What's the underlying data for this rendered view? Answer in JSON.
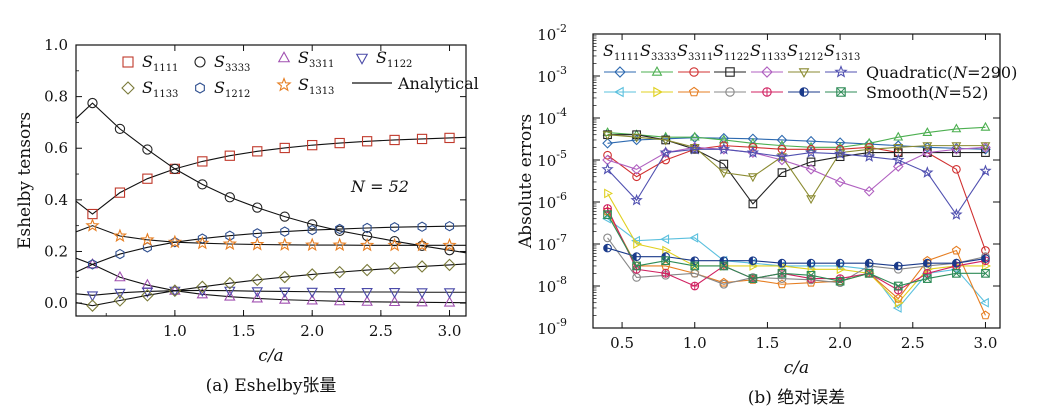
{
  "chart_data": [
    {
      "type": "line",
      "caption": "(a) Eshelby张量",
      "xlabel": "c/a",
      "ylabel": "Eshelby tensors",
      "xlim": [
        0.28,
        3.12
      ],
      "ylim": [
        -0.05,
        1.0
      ],
      "xticks": [
        "1.0",
        "1.5",
        "2.0",
        "2.5",
        "3.0"
      ],
      "yticks": [
        "0.0",
        "0.2",
        "0.4",
        "0.6",
        "0.8",
        "1.0"
      ],
      "annotation": "N = 52",
      "legend_placement": "top",
      "analytical_label": "Analytical",
      "series": [
        {
          "name": "S1111",
          "label": "S",
          "sub": "1111",
          "marker": "square",
          "color": "#c0392b",
          "x": [
            0.4,
            0.6,
            0.8,
            1.0,
            1.2,
            1.4,
            1.6,
            1.8,
            2.0,
            2.2,
            2.4,
            2.6,
            2.8,
            3.0
          ],
          "y": [
            0.345,
            0.428,
            0.482,
            0.52,
            0.549,
            0.571,
            0.588,
            0.601,
            0.612,
            0.62,
            0.627,
            0.632,
            0.636,
            0.64
          ]
        },
        {
          "name": "S3333",
          "label": "S",
          "sub": "3333",
          "marker": "circle",
          "color": "#222222",
          "x": [
            0.4,
            0.6,
            0.8,
            1.0,
            1.2,
            1.4,
            1.6,
            1.8,
            2.0,
            2.2,
            2.4,
            2.6,
            2.8,
            3.0
          ],
          "y": [
            0.775,
            0.675,
            0.595,
            0.52,
            0.46,
            0.41,
            0.37,
            0.335,
            0.305,
            0.28,
            0.26,
            0.24,
            0.222,
            0.205
          ]
        },
        {
          "name": "S3311",
          "label": "S",
          "sub": "3311",
          "marker": "triangle-up",
          "color": "#a050b0",
          "x": [
            0.4,
            0.6,
            0.8,
            1.0,
            1.2,
            1.4,
            1.6,
            1.8,
            2.0,
            2.2,
            2.4,
            2.6,
            2.8,
            3.0
          ],
          "y": [
            0.15,
            0.1,
            0.07,
            0.048,
            0.034,
            0.025,
            0.018,
            0.013,
            0.01,
            0.007,
            0.005,
            0.004,
            0.003,
            0.002
          ]
        },
        {
          "name": "S1122",
          "label": "S",
          "sub": "1122",
          "marker": "triangle-down",
          "color": "#4a4aa8",
          "x": [
            0.4,
            0.6,
            0.8,
            1.0,
            1.2,
            1.4,
            1.6,
            1.8,
            2.0,
            2.2,
            2.4,
            2.6,
            2.8,
            3.0
          ],
          "y": [
            0.03,
            0.04,
            0.045,
            0.048,
            0.049,
            0.048,
            0.046,
            0.045,
            0.044,
            0.043,
            0.043,
            0.043,
            0.042,
            0.042
          ]
        },
        {
          "name": "S1133",
          "label": "S",
          "sub": "1133",
          "marker": "diamond",
          "color": "#7a7a3a",
          "x": [
            0.4,
            0.6,
            0.8,
            1.0,
            1.2,
            1.4,
            1.6,
            1.8,
            2.0,
            2.2,
            2.4,
            2.6,
            2.8,
            3.0
          ],
          "y": [
            -0.01,
            0.01,
            0.03,
            0.048,
            0.063,
            0.077,
            0.09,
            0.101,
            0.111,
            0.12,
            0.128,
            0.135,
            0.142,
            0.148
          ]
        },
        {
          "name": "S1212",
          "label": "S",
          "sub": "1212",
          "marker": "hexagon",
          "color": "#2f4f8f",
          "x": [
            0.4,
            0.6,
            0.8,
            1.0,
            1.2,
            1.4,
            1.6,
            1.8,
            2.0,
            2.2,
            2.4,
            2.6,
            2.8,
            3.0
          ],
          "y": [
            0.15,
            0.19,
            0.216,
            0.236,
            0.25,
            0.261,
            0.27,
            0.277,
            0.283,
            0.287,
            0.291,
            0.294,
            0.296,
            0.298
          ]
        },
        {
          "name": "S1313",
          "label": "S",
          "sub": "1313",
          "marker": "star",
          "color": "#e67e22",
          "x": [
            0.4,
            0.6,
            0.8,
            1.0,
            1.2,
            1.4,
            1.6,
            1.8,
            2.0,
            2.2,
            2.4,
            2.6,
            2.8,
            3.0
          ],
          "y": [
            0.3,
            0.26,
            0.245,
            0.236,
            0.232,
            0.229,
            0.227,
            0.226,
            0.225,
            0.225,
            0.224,
            0.224,
            0.224,
            0.224
          ]
        }
      ]
    },
    {
      "type": "line",
      "caption": "(b) 绝对误差",
      "xlabel": "c/a",
      "ylabel": "Absolute errors",
      "yscale": "log",
      "xlim": [
        0.3,
        3.1
      ],
      "ylim": [
        1e-09,
        0.01
      ],
      "xticks": [
        "0.5",
        "1.0",
        "1.5",
        "2.0",
        "2.5",
        "3.0"
      ],
      "yticks": [
        "10",
        "10",
        "10",
        "10",
        "10",
        "10",
        "10",
        "10"
      ],
      "ytick_exponents": [
        "-9",
        "-8",
        "-7",
        "-6",
        "-5",
        "-4",
        "-3",
        "-2"
      ],
      "header_labels": [
        {
          "label": "S",
          "sub": "1111"
        },
        {
          "label": "S",
          "sub": "3333"
        },
        {
          "label": "S",
          "sub": "3311"
        },
        {
          "label": "S",
          "sub": "1122"
        },
        {
          "label": "S",
          "sub": "1133"
        },
        {
          "label": "S",
          "sub": "1212"
        },
        {
          "label": "S",
          "sub": "1313"
        }
      ],
      "legend_rows": [
        {
          "text_before": "Quadratic(",
          "italic": "N",
          "text_after": "=290)"
        },
        {
          "text_before": "Smooth(",
          "italic": "N",
          "text_after": "=52)"
        }
      ],
      "x": [
        0.4,
        0.6,
        0.8,
        1.0,
        1.2,
        1.4,
        1.6,
        1.8,
        2.0,
        2.2,
        2.4,
        2.6,
        2.8,
        3.0
      ],
      "series": [
        {
          "name": "S1111",
          "group": "quadratic",
          "marker": "diamond",
          "color": "#2e6ab0",
          "y": [
            2.5e-05,
            3e-05,
            3.2e-05,
            3.4e-05,
            3.3e-05,
            3.2e-05,
            3e-05,
            2.8e-05,
            2.6e-05,
            2.4e-05,
            2.2e-05,
            2e-05,
            1.9e-05,
            1.8e-05
          ]
        },
        {
          "name": "S3333",
          "group": "quadratic",
          "marker": "triangle-up",
          "color": "#4caf50",
          "y": [
            4.5e-05,
            4e-05,
            3.5e-05,
            3.5e-05,
            3e-05,
            2.5e-05,
            2.2e-05,
            2e-05,
            2e-05,
            2.5e-05,
            3.5e-05,
            4.5e-05,
            5.5e-05,
            6e-05
          ]
        },
        {
          "name": "S3311",
          "group": "quadratic",
          "marker": "circle",
          "color": "#d03030",
          "y": [
            1.3e-05,
            4e-06,
            1e-05,
            1.8e-05,
            2.2e-05,
            2e-05,
            1.8e-05,
            1.8e-05,
            1.8e-05,
            2e-05,
            1.5e-05,
            1.5e-05,
            6e-06,
            7e-08
          ]
        },
        {
          "name": "S1122",
          "group": "quadratic",
          "marker": "square",
          "color": "#222222",
          "y": [
            4e-05,
            4e-05,
            3e-05,
            1.8e-05,
            8e-06,
            9e-07,
            5e-06,
            9e-06,
            1.2e-05,
            1.5e-05,
            1.5e-05,
            1.5e-05,
            1.5e-05,
            1.5e-05
          ]
        },
        {
          "name": "S1133",
          "group": "quadratic",
          "marker": "diamond",
          "color": "#b060c0",
          "y": [
            1e-05,
            6e-06,
            1.5e-05,
            2e-05,
            1.8e-05,
            1.5e-05,
            1e-05,
            6e-06,
            3e-06,
            1.8e-06,
            7e-06,
            1.5e-05,
            1.8e-05,
            2e-05
          ]
        },
        {
          "name": "S1212",
          "group": "quadratic",
          "marker": "triangle-down",
          "color": "#8a8a30",
          "y": [
            4e-05,
            3.5e-05,
            3e-05,
            2e-05,
            5e-06,
            4e-06,
            1.2e-05,
            1.2e-06,
            1.5e-05,
            1.8e-05,
            2e-05,
            2.2e-05,
            2.2e-05,
            2.2e-05
          ]
        },
        {
          "name": "S1313",
          "group": "quadratic",
          "marker": "star",
          "color": "#5050b0",
          "y": [
            6e-06,
            1.1e-06,
            1.5e-05,
            1.8e-05,
            1.8e-05,
            1.5e-05,
            1.2e-05,
            1.5e-05,
            1.4e-05,
            1.2e-05,
            1e-05,
            5e-06,
            5e-07,
            5.5e-06
          ]
        },
        {
          "name": "S1111",
          "group": "smooth",
          "marker": "triangle-left",
          "color": "#5bc0de",
          "y": [
            4e-07,
            1.2e-07,
            1.3e-07,
            1.4e-07,
            4e-08,
            3.5e-08,
            3e-08,
            3e-08,
            3e-08,
            2.5e-08,
            3e-09,
            2e-08,
            2.5e-08,
            4e-09
          ]
        },
        {
          "name": "S3333",
          "group": "smooth",
          "marker": "triangle-right",
          "color": "#e0d020",
          "y": [
            1.6e-06,
            1e-07,
            7e-08,
            3e-08,
            3e-08,
            3e-08,
            3e-08,
            2.5e-08,
            2.5e-08,
            2e-08,
            4e-09,
            2.5e-08,
            3e-08,
            3e-08
          ]
        },
        {
          "name": "S3311",
          "group": "smooth",
          "marker": "pentagon",
          "color": "#e67e22",
          "y": [
            6e-07,
            3e-08,
            3e-08,
            2e-08,
            1.2e-08,
            1.4e-08,
            1.1e-08,
            1.2e-08,
            1.3e-08,
            2e-08,
            5e-09,
            4e-08,
            7e-08,
            2e-09
          ]
        },
        {
          "name": "S1122",
          "group": "smooth",
          "marker": "circle",
          "color": "#888888",
          "y": [
            1.4e-07,
            1.6e-08,
            1.8e-08,
            2e-08,
            1.1e-08,
            1.6e-08,
            1.5e-08,
            1.4e-08,
            1.2e-08,
            3e-08,
            2.5e-08,
            3e-08,
            3.5e-08,
            5e-08
          ]
        },
        {
          "name": "S1133",
          "group": "smooth",
          "marker": "circle-plus",
          "color": "#d02060",
          "y": [
            7e-07,
            2.5e-08,
            2e-08,
            1e-08,
            3e-08,
            1.5e-08,
            2e-08,
            1.5e-08,
            1.5e-08,
            2e-08,
            8e-09,
            2e-08,
            3e-08,
            4e-08
          ]
        },
        {
          "name": "S1212",
          "group": "smooth",
          "marker": "circle-filled",
          "color": "#1a3a8a",
          "y": [
            8e-08,
            5e-08,
            5e-08,
            4e-08,
            4e-08,
            4e-08,
            3.5e-08,
            3.5e-08,
            3.5e-08,
            3.5e-08,
            3e-08,
            3.5e-08,
            3.5e-08,
            4.5e-08
          ]
        },
        {
          "name": "S1313",
          "group": "smooth",
          "marker": "square-x",
          "color": "#2e8b57",
          "y": [
            5e-07,
            3e-08,
            4e-08,
            3e-08,
            3e-08,
            1.5e-08,
            2e-08,
            1.8e-08,
            1.3e-08,
            2e-08,
            1e-08,
            1.5e-08,
            2e-08,
            2e-08
          ]
        }
      ]
    }
  ]
}
